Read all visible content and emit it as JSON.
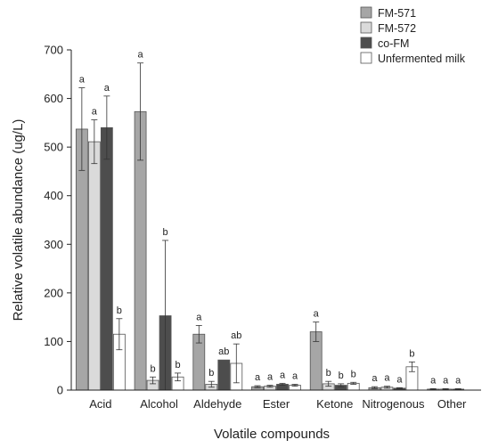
{
  "chart_data": {
    "type": "bar",
    "xlabel": "Volatile compounds",
    "ylabel": "Relative volatile abundance (ug/L)",
    "ylim": [
      0,
      700
    ],
    "yticks": [
      0,
      100,
      200,
      300,
      400,
      500,
      600,
      700
    ],
    "grid": false,
    "legend_position": "top-right",
    "categories": [
      "Acid",
      "Alcohol",
      "Aldehyde",
      "Ester",
      "Ketone",
      "Nitrogenous",
      "Other"
    ],
    "series": [
      {
        "name": "FM-571",
        "color": "#a6a6a6",
        "values": [
          537,
          573,
          115,
          7,
          120,
          5,
          2
        ],
        "errors": [
          85,
          100,
          18,
          2,
          20,
          2,
          1
        ],
        "labels": [
          "a",
          "a",
          "a",
          "a",
          "a",
          "a",
          "a"
        ]
      },
      {
        "name": "FM-572",
        "color": "#dadada",
        "values": [
          511,
          20,
          12,
          8,
          13,
          6,
          2
        ],
        "errors": [
          45,
          7,
          6,
          2,
          5,
          2,
          1
        ],
        "labels": [
          "a",
          "b",
          "b",
          "a",
          "b",
          "a",
          "a"
        ]
      },
      {
        "name": "co-FM",
        "color": "#4d4d4d",
        "values": [
          540,
          153,
          62,
          12,
          10,
          4,
          2
        ],
        "errors": [
          65,
          155,
          0,
          2,
          3,
          1,
          1
        ],
        "labels": [
          "a",
          "b",
          "ab",
          "a",
          "b",
          "a",
          "a"
        ]
      },
      {
        "name": "Unfermented milk",
        "color": "#ffffff",
        "values": [
          115,
          27,
          55,
          10,
          14,
          48,
          null
        ],
        "errors": [
          32,
          8,
          40,
          2,
          2,
          10,
          null
        ],
        "labels": [
          "b",
          "b",
          "ab",
          "a",
          "b",
          "b",
          ""
        ]
      }
    ]
  }
}
